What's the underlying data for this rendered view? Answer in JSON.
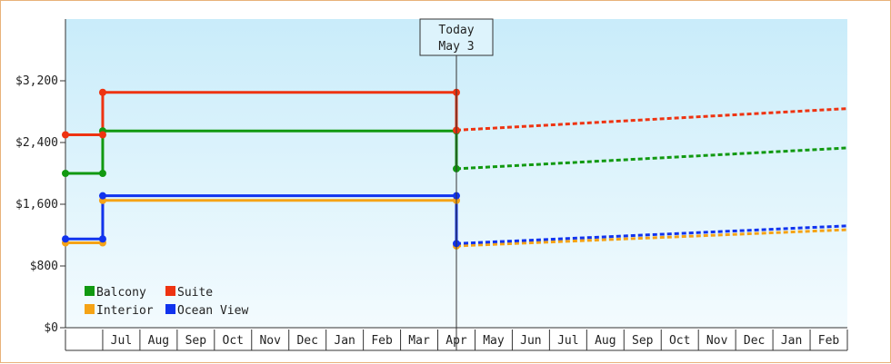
{
  "chart_data": {
    "type": "line",
    "title": "",
    "xlabel": "",
    "ylabel": "",
    "ylim": [
      0,
      4000
    ],
    "y_ticks": [
      "$0",
      "$800",
      "$1,600",
      "$2,400",
      "$3,200"
    ],
    "y_tick_values": [
      0,
      800,
      1600,
      2400,
      3200
    ],
    "month_labels": [
      "Jul",
      "Aug",
      "Sep",
      "Oct",
      "Nov",
      "Dec",
      "Jan",
      "Feb",
      "Mar",
      "Apr",
      "May",
      "Jun",
      "Jul",
      "Aug",
      "Sep",
      "Oct",
      "Nov",
      "Dec",
      "Jan",
      "Feb"
    ],
    "x_range": [
      0,
      21
    ],
    "today": {
      "label_line1": "Today",
      "label_line2": "May 3",
      "x": 10.5
    },
    "grid": false,
    "legend_position": "bottom-left",
    "series": [
      {
        "name": "Balcony",
        "color": "#119911",
        "historical": [
          [
            0,
            2000
          ],
          [
            1,
            2000
          ],
          [
            1,
            2550
          ],
          [
            10.5,
            2550
          ],
          [
            10.5,
            2060
          ]
        ],
        "markers": [
          [
            0,
            2000
          ],
          [
            1,
            2000
          ],
          [
            1,
            2550
          ],
          [
            10.5,
            2550
          ],
          [
            10.5,
            2060
          ]
        ],
        "forecast": [
          [
            10.5,
            2060
          ],
          [
            21,
            2330
          ]
        ]
      },
      {
        "name": "Suite",
        "color": "#ee3311",
        "historical": [
          [
            0,
            2500
          ],
          [
            1,
            2500
          ],
          [
            1,
            3050
          ],
          [
            10.5,
            3050
          ],
          [
            10.5,
            2560
          ]
        ],
        "markers": [
          [
            0,
            2500
          ],
          [
            1,
            2500
          ],
          [
            1,
            3050
          ],
          [
            10.5,
            3050
          ],
          [
            10.5,
            2560
          ]
        ],
        "forecast": [
          [
            10.5,
            2560
          ],
          [
            21,
            2840
          ]
        ]
      },
      {
        "name": "Interior",
        "color": "#f5a316",
        "historical": [
          [
            0,
            1100
          ],
          [
            1,
            1100
          ],
          [
            1,
            1650
          ],
          [
            10.5,
            1650
          ],
          [
            10.5,
            1060
          ]
        ],
        "markers": [
          [
            0,
            1100
          ],
          [
            1,
            1100
          ],
          [
            1,
            1650
          ],
          [
            10.5,
            1650
          ],
          [
            10.5,
            1060
          ]
        ],
        "forecast": [
          [
            10.5,
            1060
          ],
          [
            21,
            1270
          ]
        ]
      },
      {
        "name": "Ocean View",
        "color": "#1133ee",
        "historical": [
          [
            0,
            1150
          ],
          [
            1,
            1150
          ],
          [
            1,
            1710
          ],
          [
            10.5,
            1710
          ],
          [
            10.5,
            1090
          ]
        ],
        "markers": [
          [
            0,
            1150
          ],
          [
            1,
            1150
          ],
          [
            1,
            1710
          ],
          [
            10.5,
            1710
          ],
          [
            10.5,
            1090
          ]
        ],
        "forecast": [
          [
            10.5,
            1090
          ],
          [
            21,
            1320
          ]
        ]
      }
    ]
  }
}
